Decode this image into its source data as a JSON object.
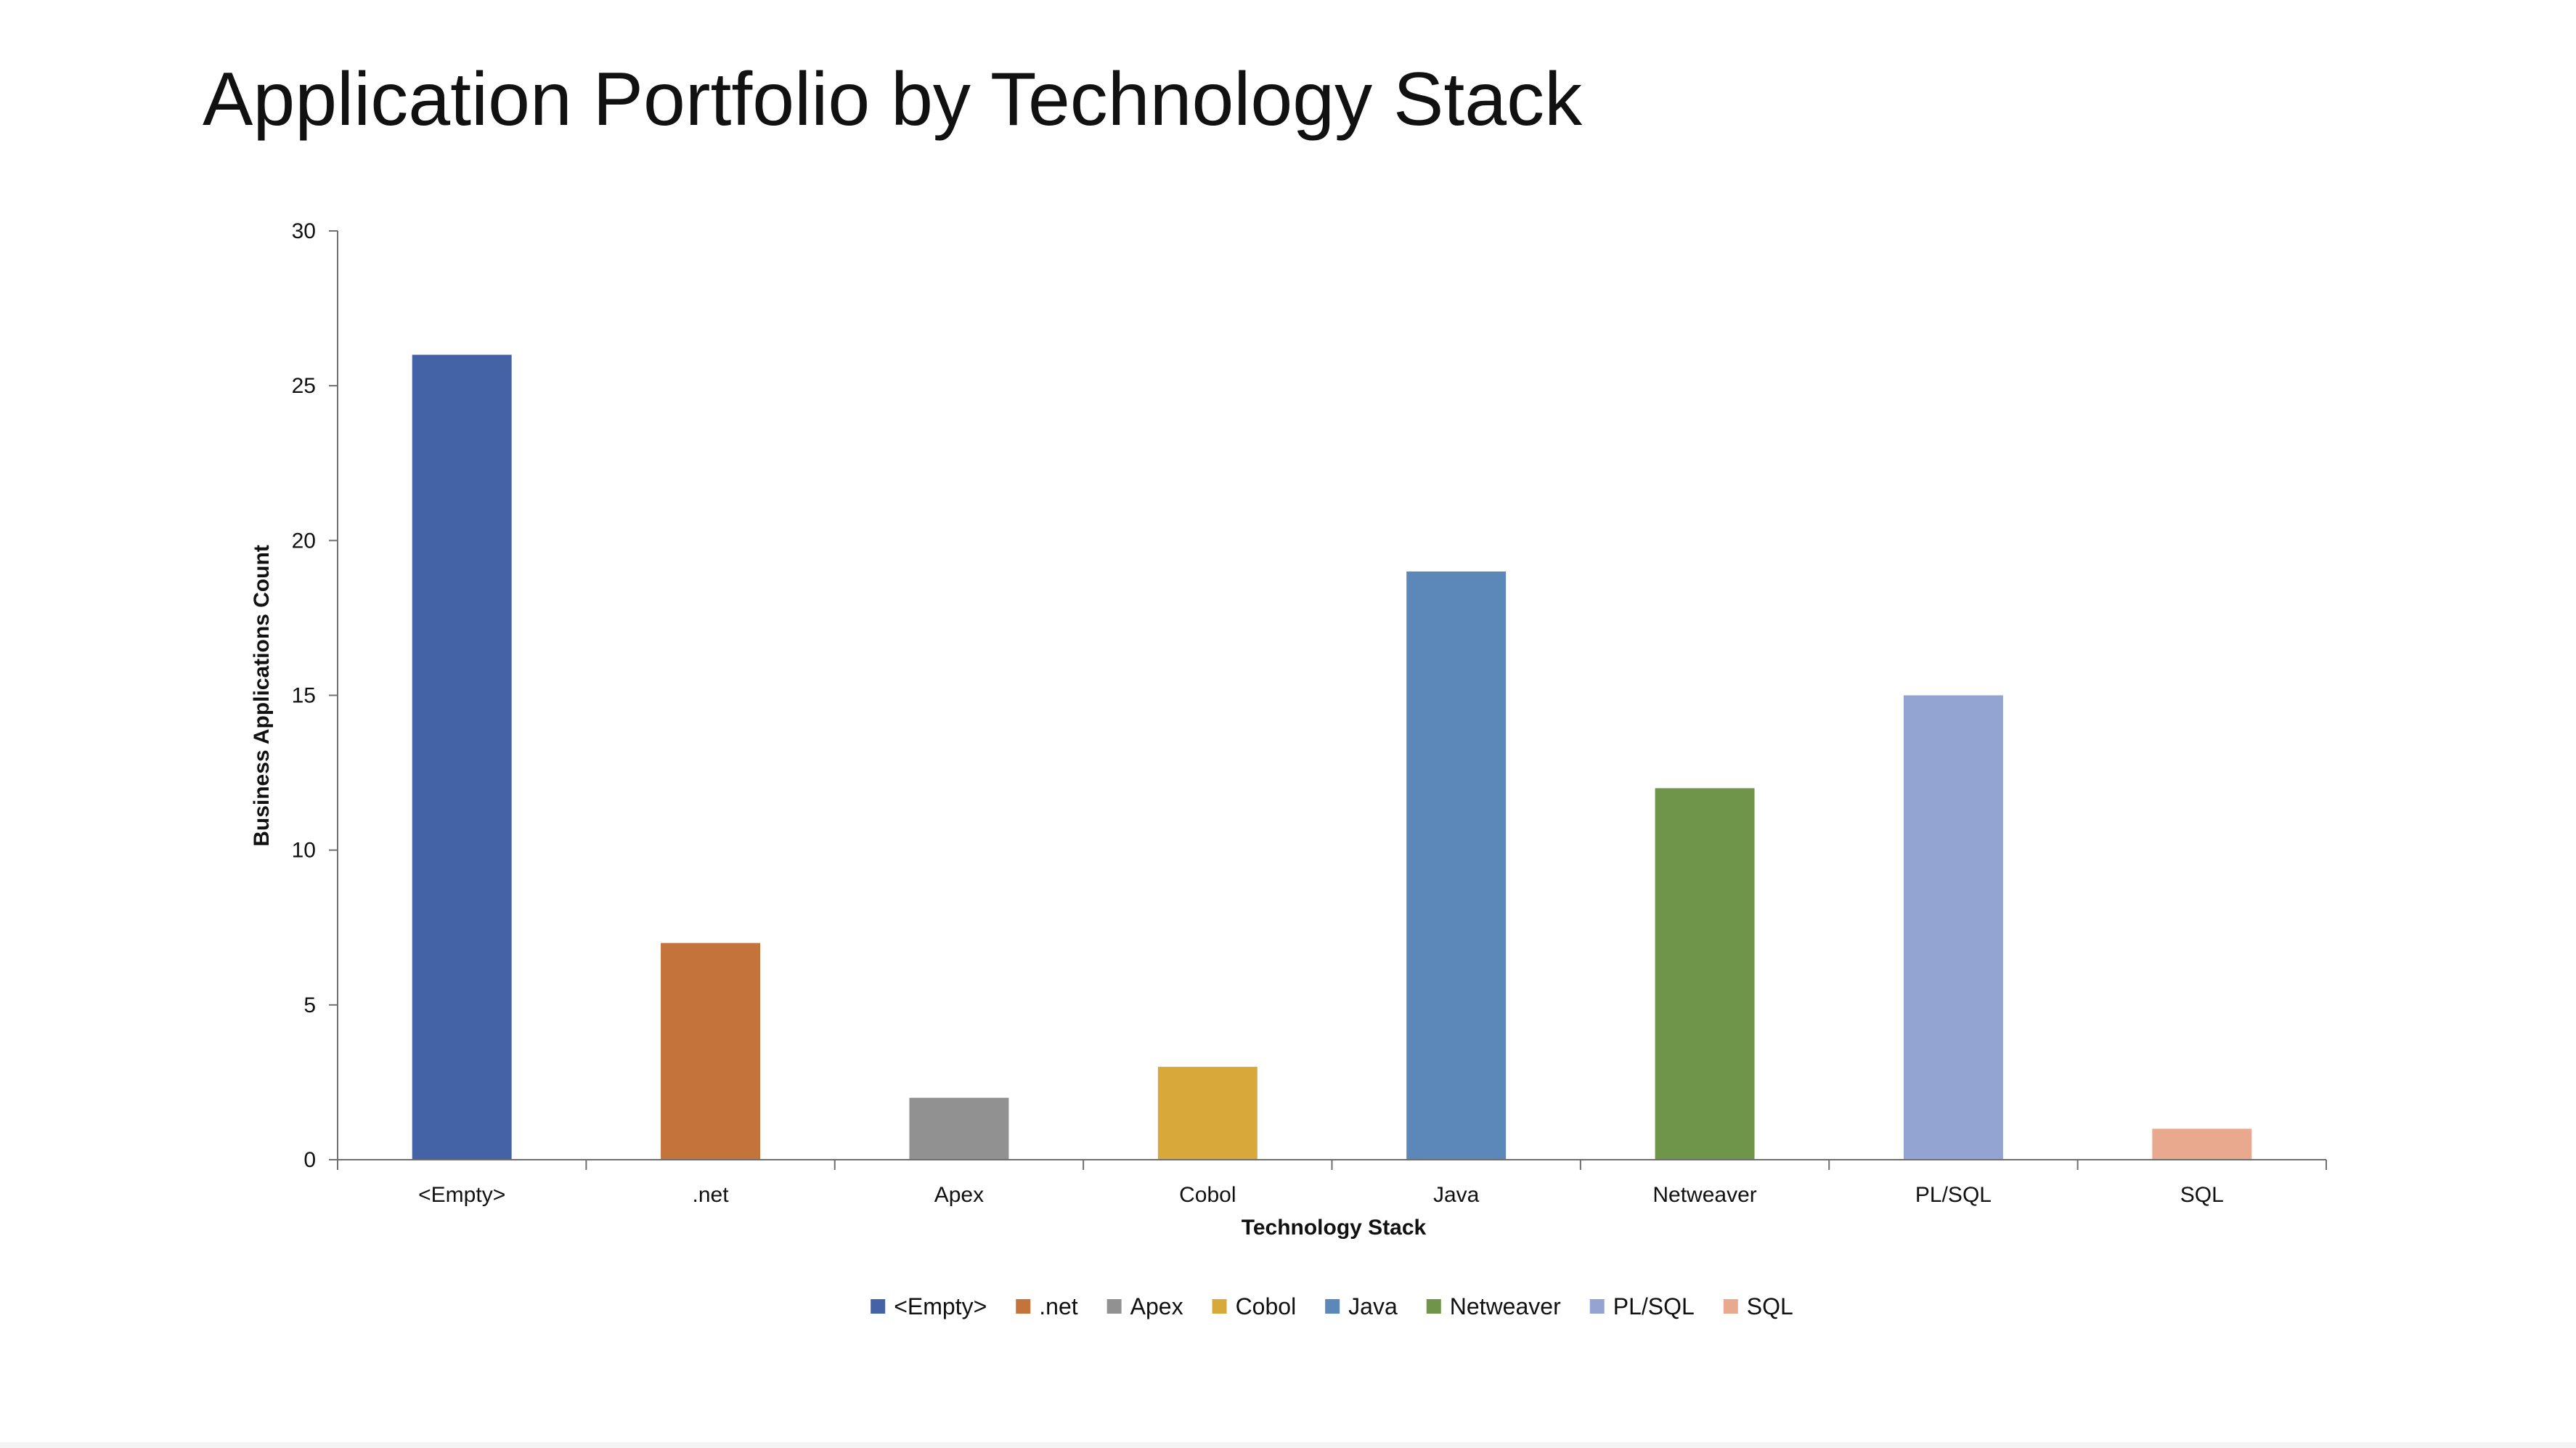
{
  "slide": {
    "title": "Application Portfolio by Technology Stack"
  },
  "chart_data": {
    "type": "bar",
    "title": "",
    "xlabel": "Technology Stack",
    "ylabel": "Business Applications Count",
    "ylim": [
      0,
      30
    ],
    "yticks": [
      "0",
      "5",
      "10",
      "15",
      "20",
      "25",
      "30"
    ],
    "categories": [
      "<Empty>",
      ".net",
      "Apex",
      "Cobol",
      "Java",
      "Netweaver",
      "PL/SQL",
      "SQL"
    ],
    "values": [
      26,
      7,
      2,
      3,
      19,
      12,
      15,
      1
    ],
    "colors": [
      "#4462A6",
      "#C4733A",
      "#919191",
      "#D9A83A",
      "#5B88B8",
      "#6E9548",
      "#93A4D2",
      "#E8A98E"
    ],
    "legend": {
      "position": "bottom",
      "entries": [
        "<Empty>",
        ".net",
        "Apex",
        "Cobol",
        "Java",
        "Netweaver",
        "PL/SQL",
        "SQL"
      ]
    },
    "grid": false
  }
}
